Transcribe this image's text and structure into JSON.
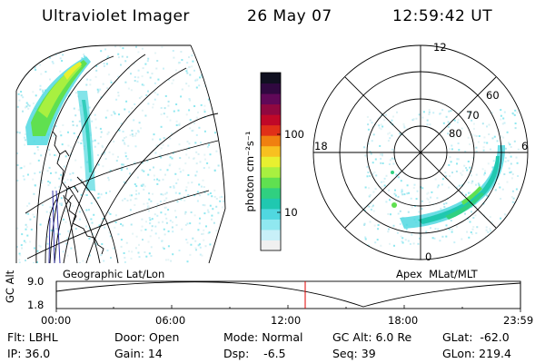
{
  "header": {
    "instrument": "Ultraviolet Imager",
    "date": "26 May 07",
    "time": "12:59:42 UT"
  },
  "colorbar": {
    "unit_label": "photon cm⁻²s⁻¹",
    "ticks": [
      "100",
      "10"
    ],
    "colors": [
      "#f0f0f0",
      "#c8f0f8",
      "#90e8f0",
      "#50d8e0",
      "#20c8b0",
      "#30d080",
      "#60e050",
      "#a8f040",
      "#e8f030",
      "#f8c020",
      "#f08010",
      "#e03018",
      "#c00828",
      "#900840",
      "#600858",
      "#300840",
      "#101020"
    ]
  },
  "geo_panel": {
    "caption": "Geographic Lat/Lon"
  },
  "polar_panel": {
    "caption": "Apex  MLat/MLT",
    "lat_labels": [
      "80",
      "70",
      "60"
    ],
    "mlt_labels": [
      "12",
      "18",
      "6",
      "0"
    ]
  },
  "altitude_plot": {
    "ylabel": "GC Alt",
    "yticks": [
      "9.0",
      "1.8"
    ],
    "xticks": [
      "00:00",
      "06:00",
      "12:00",
      "18:00",
      "23:59"
    ],
    "current_time": "12:59"
  },
  "status": {
    "filter": "Flt: LBHL",
    "ip": "IP: 36.0",
    "door": "Door: Open",
    "gain": "Gain: 14",
    "mode": "Mode: Normal",
    "dsp": "Dsp:    -6.5",
    "gc_alt": "GC Alt: 6.0 Re",
    "seq": "Seq: 39",
    "glat": "GLat:  -62.0",
    "glon": "GLon: 219.4"
  }
}
